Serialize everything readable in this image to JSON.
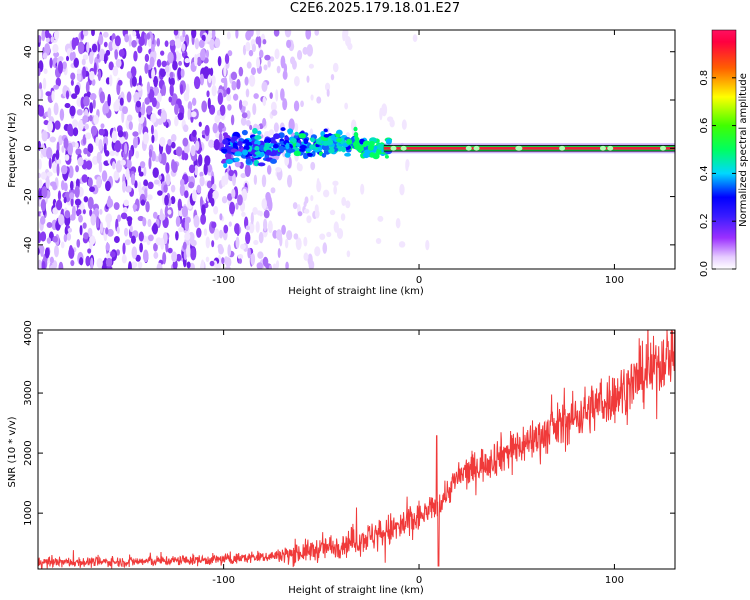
{
  "title": "C2E6.2025.179.18.01.E27",
  "chart_data": [
    {
      "type": "heatmap",
      "xlabel": "Height of straight line (km)",
      "ylabel": "Frequency (Hz)",
      "xlim": [
        -195,
        131
      ],
      "ylim": [
        -50,
        49
      ],
      "xticks": [
        -100,
        0,
        100
      ],
      "yticks": [
        -40,
        -20,
        0,
        20,
        40
      ],
      "colorbar": {
        "label": "Normalized spectral amplitude",
        "range": [
          0,
          1
        ],
        "ticks": [
          "0.0",
          "0.2",
          "0.4",
          "0.6",
          "0.8"
        ],
        "tick_values": [
          0.0,
          0.2,
          0.4,
          0.6,
          0.8
        ],
        "colormap": "rainbow (white-violet-blue-cyan-green-yellow-red)"
      },
      "features": {
        "carrier_frequency_hz": 0,
        "coherent_signal_from_km": -100,
        "strong_line_from_km": -15,
        "noise_extends_to_km": -40
      },
      "colors": {
        "background": "#ffffff",
        "noise": "#7b2cf0",
        "line": "#e8223a"
      }
    },
    {
      "type": "line",
      "xlabel": "Height of straight line (km)",
      "ylabel": "SNR (10 * v/v)",
      "xlim": [
        -195,
        131
      ],
      "ylim": [
        70,
        4050
      ],
      "xticks": [
        -100,
        0,
        100
      ],
      "yticks": [
        1000,
        2000,
        3000,
        4000
      ],
      "series": [
        {
          "color": "#f03a3a",
          "trend_points": {
            "x": [
              -195,
              -150,
              -100,
              -70,
              -50,
              -30,
              -10,
              0,
              10,
              20,
              40,
              60,
              80,
              100,
              120,
              131
            ],
            "y": [
              180,
              190,
              230,
              300,
              400,
              560,
              760,
              930,
              1150,
              1600,
              1950,
              2250,
              2600,
              2950,
              3400,
              3750
            ]
          },
          "spike": {
            "x": 9,
            "y": 2290
          },
          "dip": {
            "x": 10,
            "y": 120
          }
        }
      ]
    }
  ]
}
